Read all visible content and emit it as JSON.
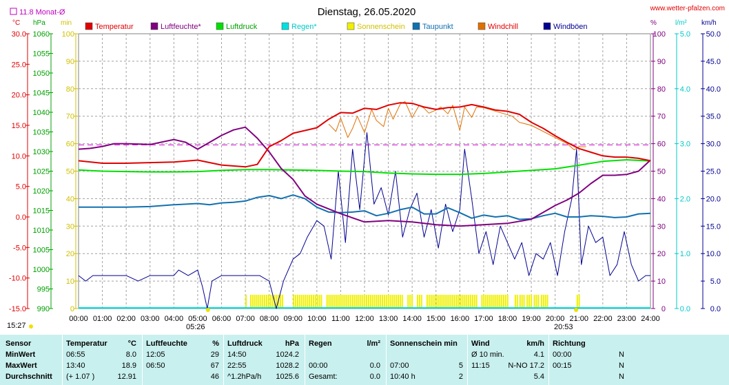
{
  "header": {
    "title": "Dienstag, 26.05.2020",
    "site": "www.wetter-pfalzen.com",
    "monat_label": "11.8 Monat-Ø",
    "sunrise": "05:26",
    "sunset": "20:53",
    "now": "15:27"
  },
  "colors": {
    "Temperatur": "#e00000",
    "Luftfeuchte": "#800080",
    "Luftdruck": "#00e000",
    "Regen": "#00e0e0",
    "Sonnenschein": "#f0f000",
    "Taupunkt": "#1070b0",
    "Windchill": "#e07000",
    "Windboeen": "#000090"
  },
  "chart_data": {
    "type": "line",
    "title": "Dienstag, 26.05.2020",
    "x_ticks": [
      "00:00",
      "01:00",
      "02:00",
      "03:00",
      "04:00",
      "05:00",
      "06:00",
      "07:00",
      "08:00",
      "09:00",
      "10:00",
      "11:00",
      "12:00",
      "13:00",
      "14:00",
      "15:00",
      "16:00",
      "17:00",
      "18:00",
      "19:00",
      "20:00",
      "21:00",
      "22:00",
      "23:00",
      "24:00"
    ],
    "axes": {
      "temp": {
        "unit": "°C",
        "range": [
          -15,
          30
        ],
        "ticks": [
          "30.0",
          "25.0",
          "20.0",
          "15.0",
          "10.0",
          "5.0",
          "0.0",
          "-5.0",
          "-10.0",
          "-15.0"
        ]
      },
      "pressure": {
        "unit": "hPa",
        "range": [
          990,
          1060
        ],
        "ticks": [
          "1060",
          "1055",
          "1050",
          "1045",
          "1040",
          "1035",
          "1030",
          "1025",
          "1020",
          "1015",
          "1010",
          "1005",
          "1000",
          "995",
          "990"
        ]
      },
      "sun": {
        "unit": "min",
        "range": [
          0,
          100
        ],
        "ticks": [
          "100",
          "90",
          "80",
          "70",
          "60",
          "50",
          "40",
          "30",
          "20",
          "10",
          "0"
        ]
      },
      "humidity": {
        "unit": "%",
        "range": [
          0,
          100
        ],
        "ticks": [
          "100",
          "90",
          "80",
          "70",
          "60",
          "50",
          "40",
          "30",
          "20",
          "10",
          "0"
        ]
      },
      "rain": {
        "unit": "l/m²",
        "range": [
          0,
          5
        ],
        "ticks": [
          "5.0",
          "4.0",
          "3.0",
          "2.0",
          "1.0",
          "0.0"
        ]
      },
      "wind": {
        "unit": "km/h",
        "range": [
          0,
          50
        ],
        "ticks": [
          "50.0",
          "45.0",
          "40.0",
          "35.0",
          "30.0",
          "25.0",
          "20.0",
          "15.0",
          "10.0",
          "5.0",
          "0.0"
        ]
      }
    },
    "monthly_avg_temp": 11.8,
    "legend": [
      "Temperatur",
      "Luftfeuchte*",
      "Luftdruck",
      "Regen*",
      "Sonnenschein",
      "Taupunkt",
      "Windchill",
      "Windböen"
    ],
    "series": [
      {
        "name": "Temperatur",
        "axis": "temp",
        "x": [
          0,
          1,
          2,
          3,
          4,
          5,
          6,
          7,
          7.5,
          8,
          8.5,
          9,
          10,
          10.5,
          11,
          11.5,
          12,
          12.5,
          13,
          13.5,
          14,
          14.5,
          15,
          15.5,
          16,
          16.5,
          17,
          17.5,
          18,
          18.5,
          19,
          19.5,
          20,
          20.5,
          21,
          21.5,
          22,
          22.5,
          23,
          23.5,
          24
        ],
        "values": [
          9.2,
          8.8,
          8.8,
          8.9,
          9.0,
          9.3,
          8.5,
          8.2,
          8.6,
          11.5,
          12.5,
          13.7,
          14.6,
          16.0,
          17.1,
          17.0,
          17.8,
          17.6,
          18.3,
          18.7,
          18.6,
          18.0,
          17.6,
          17.9,
          18.0,
          18.4,
          18.0,
          17.5,
          17.3,
          16.8,
          15.5,
          14.5,
          13.3,
          12.2,
          11.2,
          10.6,
          10.0,
          9.8,
          9.8,
          9.6,
          9.2
        ]
      },
      {
        "name": "Luftfeuchte",
        "axis": "humidity",
        "x": [
          0,
          0.5,
          1,
          1.5,
          2,
          3,
          4,
          4.5,
          5,
          5.5,
          6,
          6.5,
          7,
          7.5,
          8,
          8.5,
          9,
          9.5,
          10,
          11,
          12,
          13,
          14,
          15,
          16,
          17,
          18,
          19,
          20,
          20.5,
          21,
          21.5,
          22,
          22.5,
          23,
          23.5,
          24
        ],
        "values": [
          58,
          58.3,
          59,
          60,
          60,
          59.7,
          61.5,
          60.5,
          58,
          60.5,
          63,
          65,
          66,
          62,
          57,
          51,
          47,
          41,
          38,
          34.5,
          31.5,
          32,
          31.5,
          30.5,
          30,
          30.5,
          31,
          32.5,
          37.5,
          39.5,
          42,
          45.5,
          48.5,
          48.5,
          48.8,
          50,
          54
        ]
      },
      {
        "name": "Luftdruck",
        "axis": "pressure",
        "x": [
          0,
          1,
          2,
          3,
          4,
          5,
          6,
          7,
          8,
          9,
          10,
          11,
          12,
          13,
          14,
          15,
          16,
          17,
          18,
          19,
          20,
          21,
          22,
          23,
          24
        ],
        "values": [
          1025.3,
          1025.0,
          1024.9,
          1024.8,
          1024.8,
          1024.9,
          1025.2,
          1025.4,
          1025.4,
          1025.3,
          1025.2,
          1025.0,
          1024.9,
          1024.5,
          1024.3,
          1024.2,
          1024.2,
          1024.4,
          1024.8,
          1025.2,
          1025.6,
          1026.5,
          1027.5,
          1027.9,
          1027.6
        ]
      },
      {
        "name": "Taupunkt",
        "axis": "temp",
        "x": [
          0,
          1,
          2,
          3,
          4,
          5,
          5.5,
          6,
          6.5,
          7,
          7.5,
          8,
          8.5,
          9,
          9.5,
          10,
          10.5,
          11,
          11.5,
          12,
          12.5,
          13,
          13.5,
          14,
          14.5,
          15,
          15.5,
          16,
          16.5,
          17,
          17.5,
          18,
          18.5,
          19,
          19.5,
          20,
          20.5,
          21,
          21.5,
          22,
          22.5,
          23,
          23.5,
          24
        ],
        "values": [
          1.6,
          1.6,
          1.6,
          1.7,
          2.0,
          2.2,
          2.0,
          2.3,
          2.4,
          2.6,
          3.2,
          3.5,
          3.0,
          3.6,
          3.0,
          1.6,
          0.8,
          0.7,
          0.8,
          1.0,
          0.2,
          0.6,
          1.2,
          1.6,
          0.5,
          0.5,
          1.5,
          0.7,
          -0.2,
          0.3,
          0.0,
          0.2,
          -0.4,
          -0.3,
          0.2,
          0.6,
          0.0,
          0.0,
          0.2,
          0.1,
          -0.1,
          0.0,
          0.5,
          0.6
        ]
      },
      {
        "name": "Windchill",
        "axis": "temp",
        "x": [
          10.5,
          10.8,
          11,
          11.3,
          11.5,
          11.7,
          12,
          12.3,
          12.5,
          12.8,
          13,
          13.2,
          13.5,
          13.7,
          14,
          14.3,
          14.5,
          14.7,
          15,
          15.2,
          15.5,
          15.7,
          16,
          16.2,
          16.5,
          16.7,
          17,
          18.2,
          18.5,
          19,
          20.5,
          20.8,
          21,
          21.3
        ],
        "values": [
          15.2,
          14.0,
          16.2,
          13.0,
          14.5,
          16.5,
          13.8,
          17.6,
          15.8,
          14.8,
          17.8,
          16.0,
          18.5,
          18.9,
          16.3,
          18.3,
          17.8,
          17.0,
          17.5,
          18.0,
          16.9,
          18.3,
          14.2,
          18.0,
          16.3,
          18.0,
          17.9,
          16.5,
          15.5,
          15.0,
          12.0,
          11.0,
          11.5,
          11.5
        ]
      },
      {
        "name": "Windböen",
        "axis": "wind",
        "x": [
          0,
          0.3,
          0.6,
          1,
          1.5,
          2,
          2.5,
          3,
          3.5,
          4,
          4.2,
          4.6,
          5,
          5.2,
          5.4,
          5.6,
          6,
          6.5,
          7,
          7.3,
          7.6,
          8,
          8.3,
          8.6,
          9,
          9.3,
          9.6,
          10,
          10.3,
          10.6,
          10.9,
          11.2,
          11.5,
          11.8,
          12.1,
          12.4,
          12.7,
          13,
          13.3,
          13.6,
          13.9,
          14.2,
          14.5,
          14.8,
          15.1,
          15.4,
          15.7,
          16,
          16.2,
          16.5,
          16.8,
          17.1,
          17.4,
          17.7,
          18,
          18.3,
          18.6,
          18.9,
          19.2,
          19.5,
          19.8,
          20.1,
          20.4,
          20.7,
          20.9,
          21.1,
          21.4,
          21.7,
          22,
          22.3,
          22.6,
          22.9,
          23.2,
          23.5,
          23.8,
          24
        ],
        "values": [
          6,
          5,
          6,
          6,
          6,
          6,
          5,
          6,
          6,
          6,
          7,
          6,
          7,
          4,
          0,
          5,
          6,
          6,
          6,
          6,
          6,
          5,
          0,
          5,
          9,
          10,
          13,
          16,
          15,
          9,
          25,
          12,
          29,
          18,
          32,
          19,
          22,
          17,
          25,
          13,
          18,
          21,
          13,
          18,
          11,
          19,
          14,
          18,
          29,
          20,
          10,
          14,
          8,
          15,
          12,
          9,
          12,
          6,
          10,
          9,
          12,
          6,
          14,
          20,
          29,
          8,
          15,
          12,
          13,
          6,
          8,
          14,
          8,
          5,
          6,
          6
        ]
      }
    ],
    "sunshine_on": [
      [
        7.0,
        7.05
      ],
      [
        7.2,
        8.6
      ],
      [
        9.0,
        10.2
      ],
      [
        10.4,
        13.6
      ],
      [
        13.8,
        14.0
      ],
      [
        14.2,
        14.4
      ],
      [
        14.6,
        16.7
      ],
      [
        16.9,
        18.0
      ],
      [
        18.3,
        18.4
      ],
      [
        18.5,
        18.7
      ],
      [
        18.8,
        19.0
      ],
      [
        19.1,
        19.3
      ],
      [
        19.4,
        19.7
      ],
      [
        20.9,
        21.0
      ]
    ]
  },
  "table": {
    "rows": [
      [
        "Sensor",
        "Temperatur",
        "°C",
        "Luftfeuchte",
        "%",
        "Luftdruck",
        "hPa",
        "Regen",
        "l/m²",
        "Sonnenschein min",
        "",
        "Wind",
        "km/h",
        "Richtung",
        ""
      ],
      [
        "MinWert",
        "06:55",
        "8.0",
        "12:05",
        "29",
        "14:50",
        "1024.2",
        "",
        "",
        "",
        "",
        "Ø 10 min.",
        "4.1",
        "00:00",
        "N"
      ],
      [
        "MaxWert",
        "13:40",
        "18.9",
        "06:50",
        "67",
        "22:55",
        "1028.2",
        "00:00",
        "0.0",
        "07:00",
        "5",
        "11:15",
        "N-NO 17.2",
        "00:15",
        "N"
      ],
      [
        "Durchschnitt",
        "(+ 1.07 )",
        "12.91",
        "",
        "46",
        "^1.2hPa/h",
        "1025.6",
        "Gesamt:",
        "0.0",
        "10:40 h",
        "2",
        "",
        "5.4",
        "",
        "N"
      ]
    ]
  }
}
